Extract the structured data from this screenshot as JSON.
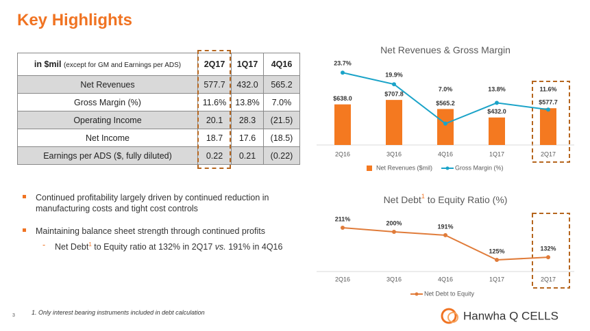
{
  "header": {
    "title": "Key Highlights"
  },
  "table": {
    "header": [
      "in $mil",
      "(except for GM and Earnings per ADS)",
      "2Q17",
      "1Q17",
      "4Q16"
    ],
    "rows": [
      [
        "Net Revenues",
        "577.7",
        "432.0",
        "565.2"
      ],
      [
        "Gross Margin (%)",
        "11.6%",
        "13.8%",
        "7.0%"
      ],
      [
        "Operating Income",
        "20.1",
        "28.3",
        "(21.5)"
      ],
      [
        "Net Income",
        "18.7",
        "17.6",
        "(18.5)"
      ],
      [
        "Earnings per ADS ($, fully diluted)",
        "0.22",
        "0.21",
        "(0.22)"
      ]
    ]
  },
  "bullets": [
    {
      "text": "Continued profitability largely driven by continued reduction in manufacturing costs and tight cost controls"
    },
    {
      "text": "Maintaining balance sheet strength through continued profits",
      "sub": [
        "Net Debt",
        "1",
        " to Equity ratio at 132% in 2Q17 ",
        "vs.",
        " 191% in 4Q16"
      ]
    }
  ],
  "footnote": "1.  Only interest bearing instruments included in debt calculation",
  "page_number": "3",
  "logo": "Hanwha Q CELLS",
  "chart_data": [
    {
      "type": "combo",
      "title": [
        "Net Revenues & Gross Margin"
      ],
      "categories": [
        "2Q16",
        "3Q16",
        "4Q16",
        "1Q17",
        "2Q17"
      ],
      "series": [
        {
          "name": "Net Revenues ($mil)",
          "type": "bar",
          "color": "#f47920",
          "values": [
            638.0,
            707.8,
            565.2,
            432.0,
            577.7
          ],
          "value_labels": [
            "$638.0",
            "$707.8",
            "$565.2",
            "$432.0",
            "$577.7"
          ]
        },
        {
          "name": "Gross Margin (%)",
          "type": "line",
          "axis": "y2",
          "color": "#1aa3c8",
          "values": [
            23.7,
            19.9,
            7.0,
            13.8,
            11.6
          ],
          "value_labels": [
            "23.7%",
            "19.9%",
            "7.0%",
            "13.8%",
            "11.6%"
          ]
        }
      ]
    },
    {
      "type": "line",
      "title": [
        "Net Debt",
        "1",
        " to Equity Ratio (%)"
      ],
      "categories": [
        "2Q16",
        "3Q16",
        "4Q16",
        "1Q17",
        "2Q17"
      ],
      "series": [
        {
          "name": "Net Debt to Equity",
          "type": "line",
          "color": "#e07b39",
          "values": [
            211,
            200,
            191,
            125,
            132
          ],
          "value_labels": [
            "211%",
            "200%",
            "191%",
            "125%",
            "132%"
          ]
        }
      ]
    }
  ]
}
